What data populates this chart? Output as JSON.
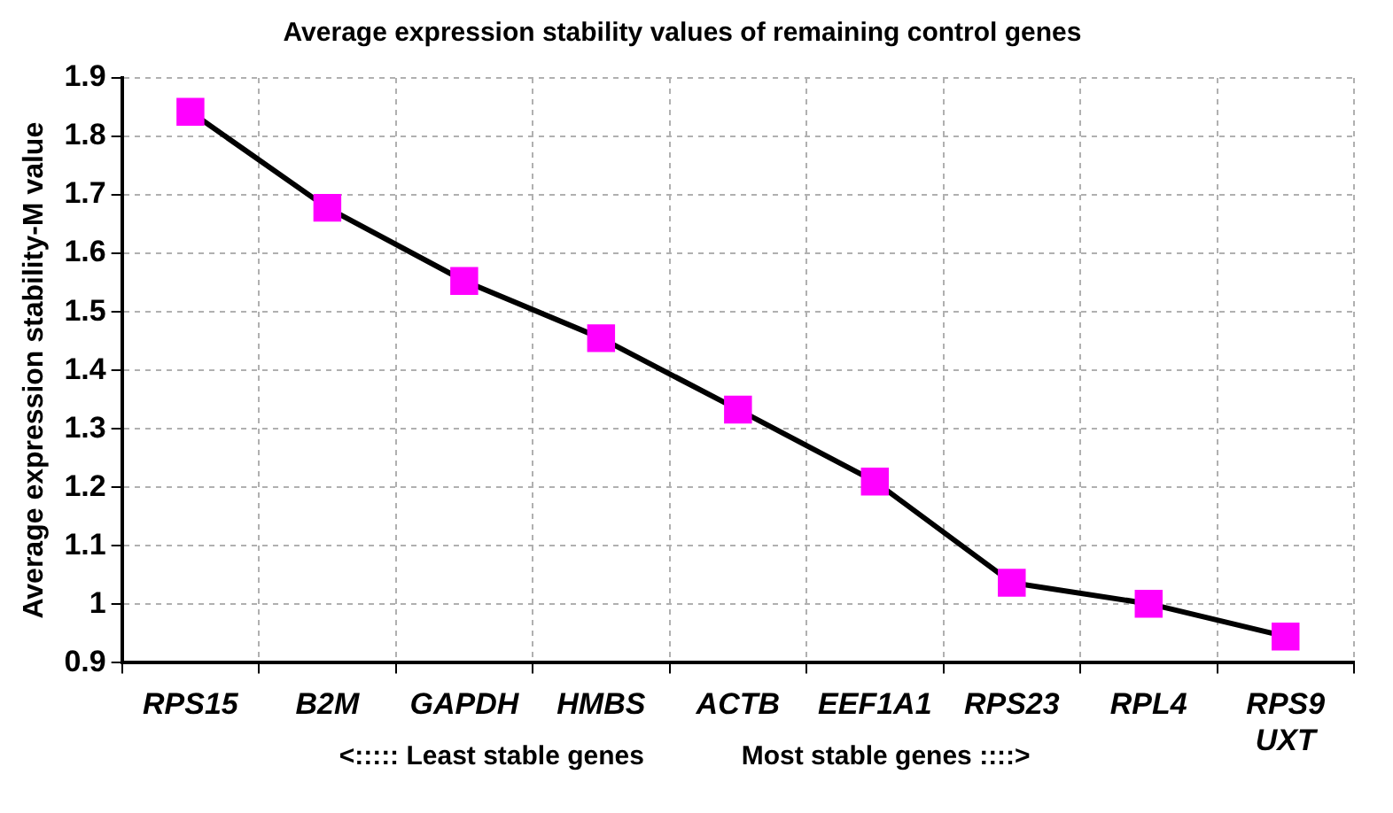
{
  "chart_data": {
    "type": "line",
    "title": "Average expression stability values of remaining control genes",
    "ylabel": "Average expression stability-M value",
    "categories": [
      "RPS15",
      "B2M",
      "GAPDH",
      "HMBS",
      "ACTB",
      "EEF1A1",
      "RPS23",
      "RPL4",
      "RPS9\nUXT"
    ],
    "series": [
      {
        "color": "#000000",
        "values": [
          1.842,
          1.678,
          1.553,
          1.455,
          1.333,
          1.21,
          1.037,
          1.001,
          0.945
        ]
      }
    ],
    "ylim": [
      0.9,
      1.9
    ],
    "yticks": [
      0.9,
      1.0,
      1.1,
      1.2,
      1.3,
      1.4,
      1.5,
      1.6,
      1.7,
      1.8,
      1.9
    ],
    "grid": true,
    "legend": false,
    "marker": "square",
    "line_style": "solid",
    "annotations": [
      "<::::: Least stable genes",
      "Most stable genes ::::>"
    ]
  }
}
